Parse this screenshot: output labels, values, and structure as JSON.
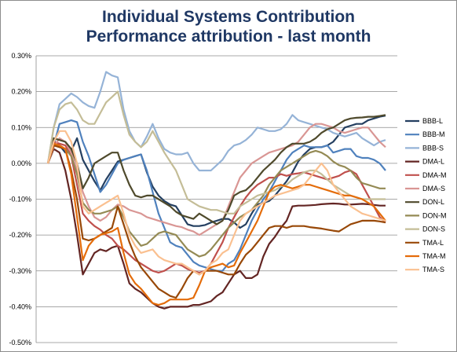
{
  "chart_data": {
    "type": "line",
    "title": "Individual Systems Contribution",
    "subtitle": "Performance attribution - last month",
    "xlabel": "",
    "ylabel": "",
    "ylim": [
      -0.5,
      0.3
    ],
    "yticks": [
      "0.30%",
      "0.20%",
      "0.10%",
      "0.00%",
      "-0.10%",
      "-0.20%",
      "-0.30%",
      "-0.40%",
      "-0.50%"
    ],
    "y_tick_values": [
      0.3,
      0.2,
      0.1,
      0.0,
      -0.1,
      -0.2,
      -0.3,
      -0.4,
      -0.5
    ],
    "grid": "horizontal",
    "legend_position": "right",
    "x": [
      1,
      2,
      3,
      4,
      5,
      6,
      7,
      8,
      9,
      10,
      11,
      12,
      13,
      14,
      15,
      16,
      17,
      18,
      19,
      20,
      21,
      22,
      23,
      24,
      25,
      26,
      27,
      28,
      29,
      30,
      31,
      32,
      33,
      34,
      35,
      36,
      37,
      38,
      39,
      40,
      41,
      42,
      43,
      44,
      45,
      46,
      47,
      48,
      49,
      50,
      51,
      52,
      53,
      54,
      55,
      56,
      57,
      58,
      59
    ],
    "series": [
      {
        "name": "BBB-L",
        "color": "#243f60",
        "values": [
          0,
          0.06,
          0.05,
          0.03,
          0.035,
          0.07,
          0.01,
          -0.02,
          -0.05,
          -0.075,
          -0.045,
          -0.02,
          0.005,
          0.01,
          0.015,
          0.02,
          0.025,
          -0.025,
          -0.065,
          -0.09,
          -0.105,
          -0.115,
          -0.12,
          -0.145,
          -0.17,
          -0.175,
          -0.175,
          -0.172,
          -0.165,
          -0.16,
          -0.155,
          -0.155,
          -0.165,
          -0.18,
          -0.17,
          -0.14,
          -0.115,
          -0.11,
          -0.105,
          -0.09,
          -0.07,
          -0.05,
          -0.025,
          0.005,
          0.025,
          0.04,
          0.045,
          0.045,
          0.05,
          0.06,
          0.08,
          0.1,
          0.105,
          0.11,
          0.11,
          0.12,
          0.125,
          0.13,
          0.133
        ]
      },
      {
        "name": "BBB-M",
        "color": "#4f81bd",
        "values": [
          0,
          0.05,
          0.11,
          0.115,
          0.12,
          0.115,
          0.06,
          0.02,
          -0.03,
          -0.08,
          -0.06,
          -0.03,
          0.0,
          0.01,
          0.015,
          0.02,
          0.025,
          -0.02,
          -0.08,
          -0.14,
          -0.18,
          -0.22,
          -0.23,
          -0.235,
          -0.255,
          -0.275,
          -0.285,
          -0.29,
          -0.295,
          -0.3,
          -0.3,
          -0.28,
          -0.27,
          -0.24,
          -0.2,
          -0.16,
          -0.13,
          -0.1,
          -0.08,
          -0.05,
          -0.02,
          0.01,
          0.03,
          0.04,
          0.05,
          0.045,
          0.045,
          0.045,
          0.05,
          0.03,
          0.035,
          0.04,
          0.04,
          0.02,
          0.015,
          0.015,
          0.01,
          0.0,
          -0.02
        ]
      },
      {
        "name": "BBB-S",
        "color": "#95b3d7",
        "values": [
          0,
          0.1,
          0.165,
          0.18,
          0.195,
          0.185,
          0.17,
          0.16,
          0.155,
          0.2,
          0.255,
          0.245,
          0.24,
          0.15,
          0.09,
          0.06,
          0.045,
          0.075,
          0.11,
          0.07,
          0.04,
          0.03,
          0.025,
          0.025,
          0.03,
          0.0,
          -0.02,
          -0.02,
          -0.02,
          -0.005,
          0.01,
          0.035,
          0.05,
          0.055,
          0.065,
          0.08,
          0.1,
          0.095,
          0.09,
          0.09,
          0.095,
          0.11,
          0.135,
          0.12,
          0.115,
          0.11,
          0.105,
          0.1,
          0.095,
          0.085,
          0.08,
          0.075,
          0.08,
          0.085,
          0.07,
          0.06,
          0.05,
          0.06,
          0.065
        ]
      },
      {
        "name": "DMA-L",
        "color": "#632523",
        "values": [
          0,
          0.04,
          0.03,
          -0.02,
          -0.1,
          -0.2,
          -0.31,
          -0.28,
          -0.25,
          -0.24,
          -0.245,
          -0.235,
          -0.23,
          -0.28,
          -0.335,
          -0.35,
          -0.36,
          -0.375,
          -0.39,
          -0.4,
          -0.405,
          -0.4,
          -0.4,
          -0.4,
          -0.4,
          -0.395,
          -0.395,
          -0.39,
          -0.385,
          -0.37,
          -0.36,
          -0.335,
          -0.31,
          -0.3,
          -0.32,
          -0.32,
          -0.31,
          -0.26,
          -0.225,
          -0.205,
          -0.18,
          -0.16,
          -0.12,
          -0.118,
          -0.118,
          -0.117,
          -0.116,
          -0.114,
          -0.113,
          -0.112,
          -0.113,
          -0.115,
          -0.115,
          -0.114,
          -0.113,
          -0.114,
          -0.116,
          -0.118,
          -0.118
        ]
      },
      {
        "name": "DMA-M",
        "color": "#c0504d",
        "values": [
          0,
          0.06,
          0.055,
          0.05,
          0.02,
          -0.06,
          -0.14,
          -0.16,
          -0.175,
          -0.185,
          -0.2,
          -0.21,
          -0.23,
          -0.24,
          -0.255,
          -0.27,
          -0.28,
          -0.29,
          -0.3,
          -0.305,
          -0.3,
          -0.29,
          -0.28,
          -0.285,
          -0.295,
          -0.3,
          -0.305,
          -0.3,
          -0.28,
          -0.25,
          -0.22,
          -0.18,
          -0.15,
          -0.12,
          -0.095,
          -0.075,
          -0.06,
          -0.05,
          -0.04,
          -0.04,
          -0.03,
          -0.035,
          -0.03,
          -0.028,
          -0.025,
          -0.03,
          -0.035,
          -0.04,
          -0.045,
          -0.04,
          -0.035,
          -0.025,
          -0.02,
          -0.03,
          -0.06,
          -0.09,
          -0.12,
          -0.15,
          -0.165
        ]
      },
      {
        "name": "DMA-S",
        "color": "#d99694",
        "values": [
          0,
          0.045,
          0.07,
          0.06,
          0.03,
          -0.02,
          -0.08,
          -0.12,
          -0.15,
          -0.16,
          -0.15,
          -0.13,
          -0.115,
          -0.12,
          -0.13,
          -0.135,
          -0.14,
          -0.15,
          -0.155,
          -0.16,
          -0.165,
          -0.17,
          -0.175,
          -0.178,
          -0.185,
          -0.19,
          -0.2,
          -0.19,
          -0.18,
          -0.17,
          -0.16,
          -0.12,
          -0.08,
          -0.04,
          -0.02,
          0.0,
          0.01,
          0.02,
          0.03,
          0.035,
          0.04,
          0.045,
          0.05,
          0.06,
          0.08,
          0.1,
          0.11,
          0.11,
          0.105,
          0.1,
          0.09,
          0.085,
          0.09,
          0.095,
          0.1,
          0.1,
          0.08,
          0.06,
          0.045
        ]
      },
      {
        "name": "DON-L",
        "color": "#4f4a2c",
        "values": [
          0,
          0.07,
          0.065,
          0.06,
          0.04,
          0.0,
          -0.07,
          -0.04,
          0.0,
          0.01,
          0.02,
          0.03,
          0.03,
          -0.02,
          -0.06,
          -0.09,
          -0.095,
          -0.09,
          -0.09,
          -0.1,
          -0.11,
          -0.12,
          -0.135,
          -0.145,
          -0.15,
          -0.155,
          -0.14,
          -0.15,
          -0.16,
          -0.17,
          -0.16,
          -0.13,
          -0.09,
          -0.08,
          -0.075,
          -0.06,
          -0.04,
          -0.02,
          -0.005,
          0.01,
          0.03,
          0.045,
          0.055,
          0.055,
          0.055,
          0.06,
          0.07,
          0.085,
          0.095,
          0.1,
          0.11,
          0.12,
          0.125,
          0.127,
          0.128,
          0.13,
          0.13,
          0.132,
          0.135
        ]
      },
      {
        "name": "DON-M",
        "color": "#948a54",
        "values": [
          0,
          0.05,
          0.05,
          0.04,
          0.02,
          -0.03,
          -0.11,
          -0.13,
          -0.14,
          -0.14,
          -0.135,
          -0.13,
          -0.12,
          -0.15,
          -0.19,
          -0.21,
          -0.23,
          -0.225,
          -0.21,
          -0.195,
          -0.19,
          -0.195,
          -0.2,
          -0.22,
          -0.24,
          -0.25,
          -0.26,
          -0.255,
          -0.24,
          -0.22,
          -0.2,
          -0.18,
          -0.165,
          -0.15,
          -0.14,
          -0.13,
          -0.11,
          -0.09,
          -0.06,
          -0.04,
          -0.02,
          -0.01,
          0.0,
          0.01,
          0.02,
          0.03,
          0.035,
          0.03,
          0.02,
          0.005,
          -0.005,
          -0.01,
          -0.02,
          -0.04,
          -0.055,
          -0.06,
          -0.065,
          -0.07,
          -0.07
        ]
      },
      {
        "name": "DON-S",
        "color": "#c4bd97",
        "values": [
          0,
          0.1,
          0.15,
          0.165,
          0.17,
          0.15,
          0.12,
          0.11,
          0.11,
          0.14,
          0.17,
          0.185,
          0.2,
          0.135,
          0.08,
          0.06,
          0.045,
          0.06,
          0.09,
          0.06,
          0.03,
          0.005,
          -0.02,
          -0.06,
          -0.1,
          -0.11,
          -0.12,
          -0.125,
          -0.13,
          -0.13,
          -0.135,
          -0.14,
          -0.14,
          -0.12,
          -0.11,
          -0.1,
          -0.09,
          -0.085,
          -0.08,
          -0.075,
          -0.065,
          -0.06,
          -0.045,
          -0.035,
          -0.025,
          -0.02,
          -0.02,
          -0.03,
          -0.045,
          -0.06,
          -0.07,
          -0.08,
          -0.09,
          -0.095,
          -0.1,
          -0.1,
          -0.1,
          -0.1,
          -0.1
        ]
      },
      {
        "name": "TMA-L",
        "color": "#984807",
        "values": [
          0,
          0.05,
          0.045,
          0.04,
          -0.02,
          -0.1,
          -0.21,
          -0.215,
          -0.21,
          -0.2,
          -0.19,
          -0.18,
          -0.12,
          -0.17,
          -0.22,
          -0.26,
          -0.29,
          -0.31,
          -0.33,
          -0.35,
          -0.36,
          -0.37,
          -0.375,
          -0.35,
          -0.32,
          -0.3,
          -0.31,
          -0.3,
          -0.3,
          -0.3,
          -0.305,
          -0.31,
          -0.31,
          -0.28,
          -0.255,
          -0.24,
          -0.22,
          -0.2,
          -0.18,
          -0.175,
          -0.175,
          -0.18,
          -0.175,
          -0.175,
          -0.175,
          -0.178,
          -0.18,
          -0.182,
          -0.185,
          -0.188,
          -0.19,
          -0.18,
          -0.17,
          -0.165,
          -0.16,
          -0.16,
          -0.16,
          -0.162,
          -0.165
        ]
      },
      {
        "name": "TMA-M",
        "color": "#e46c0a",
        "values": [
          0,
          0.055,
          0.05,
          0.04,
          -0.03,
          -0.15,
          -0.27,
          -0.23,
          -0.21,
          -0.2,
          -0.195,
          -0.19,
          -0.18,
          -0.25,
          -0.31,
          -0.335,
          -0.35,
          -0.37,
          -0.39,
          -0.395,
          -0.39,
          -0.38,
          -0.38,
          -0.38,
          -0.38,
          -0.375,
          -0.34,
          -0.3,
          -0.29,
          -0.285,
          -0.28,
          -0.29,
          -0.285,
          -0.25,
          -0.22,
          -0.19,
          -0.16,
          -0.12,
          -0.08,
          -0.065,
          -0.06,
          -0.065,
          -0.07,
          -0.065,
          -0.06,
          -0.06,
          -0.065,
          -0.07,
          -0.075,
          -0.08,
          -0.085,
          -0.09,
          -0.09,
          -0.095,
          -0.1,
          -0.11,
          -0.12,
          -0.14,
          -0.16
        ]
      },
      {
        "name": "TMA-S",
        "color": "#fac090",
        "values": [
          0,
          0.06,
          0.09,
          0.09,
          0.06,
          0.0,
          -0.12,
          -0.14,
          -0.13,
          -0.12,
          -0.11,
          -0.1,
          -0.09,
          -0.14,
          -0.2,
          -0.23,
          -0.25,
          -0.245,
          -0.24,
          -0.26,
          -0.27,
          -0.275,
          -0.28,
          -0.28,
          -0.29,
          -0.3,
          -0.31,
          -0.3,
          -0.28,
          -0.27,
          -0.25,
          -0.24,
          -0.2,
          -0.16,
          -0.14,
          -0.13,
          -0.12,
          -0.11,
          -0.1,
          -0.09,
          -0.085,
          -0.08,
          -0.075,
          -0.07,
          -0.06,
          -0.04,
          -0.02,
          0.0,
          -0.02,
          -0.06,
          -0.08,
          -0.1,
          -0.12,
          -0.13,
          -0.14,
          -0.145,
          -0.15,
          -0.155,
          -0.16
        ]
      }
    ]
  }
}
